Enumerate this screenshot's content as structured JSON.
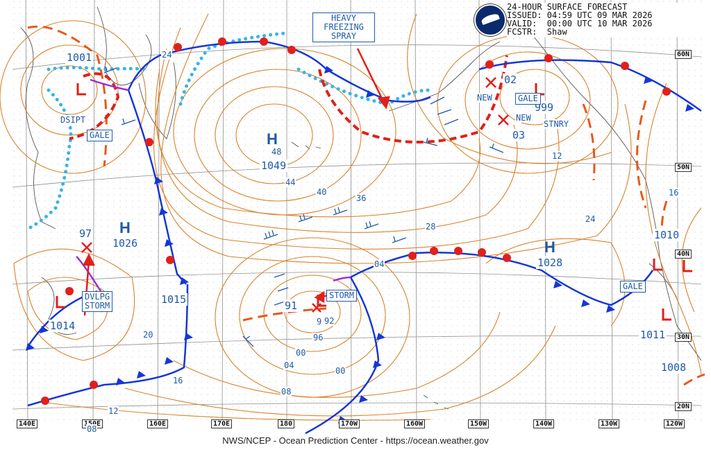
{
  "header": {
    "line1": "24-HOUR SURFACE FORECAST",
    "line2": "ISSUED: 04:59 UTC 09 MAR 2026",
    "line3": "VALID:  00:00 UTC 10 MAR 2026",
    "line4": "FCSTR:  Shaw"
  },
  "footer": "NWS/NCEP - Ocean Prediction Center - https://ocean.weather.gov",
  "longitudes": [
    "140E",
    "150E",
    "160E",
    "170E",
    "180",
    "170W",
    "160W",
    "150W",
    "140W",
    "130W",
    "120W"
  ],
  "latitudes": [
    "60N",
    "50N",
    "40N",
    "30N",
    "20N"
  ],
  "highs": [
    {
      "label": "H",
      "pressure": "1049",
      "inner": "48"
    },
    {
      "label": "H",
      "pressure": "1026"
    },
    {
      "label": "H",
      "pressure": "1028"
    }
  ],
  "lows": [
    {
      "pressure": "1001"
    },
    {
      "pressure": "97"
    },
    {
      "pressure": "1014"
    },
    {
      "pressure": "1015"
    },
    {
      "pressure": "91"
    },
    {
      "pressure": "92"
    },
    {
      "pressure": "999"
    },
    {
      "pressure": "02"
    },
    {
      "pressure": "03"
    },
    {
      "pressure": "1010"
    },
    {
      "pressure": "1011"
    },
    {
      "pressure": "1008"
    }
  ],
  "boxes": {
    "heavy_spray": "HEAVY\nFREEZING\nSPRAY",
    "gale_nw": "GALE",
    "gale_ne": "GALE",
    "gale_e": "GALE",
    "storm_c": "STORM",
    "dvlpg_storm": "DVLPG\nSTORM"
  },
  "annotations": {
    "dsipt": "DSIPT",
    "new1": "NEW",
    "new2": "NEW",
    "stnry": "STNRY"
  },
  "isobar_labels": [
    "24",
    "44",
    "40",
    "36",
    "28",
    "04",
    "00",
    "04",
    "08",
    "96",
    "20",
    "16",
    "12",
    "08",
    "12",
    "16",
    "24",
    "9"
  ],
  "colors": {
    "isobar": "#d9822b",
    "front_blue": "#1636d6",
    "front_red": "#e0201b",
    "ice_edge": "#39b4e6",
    "text": "#1f5aa6"
  }
}
